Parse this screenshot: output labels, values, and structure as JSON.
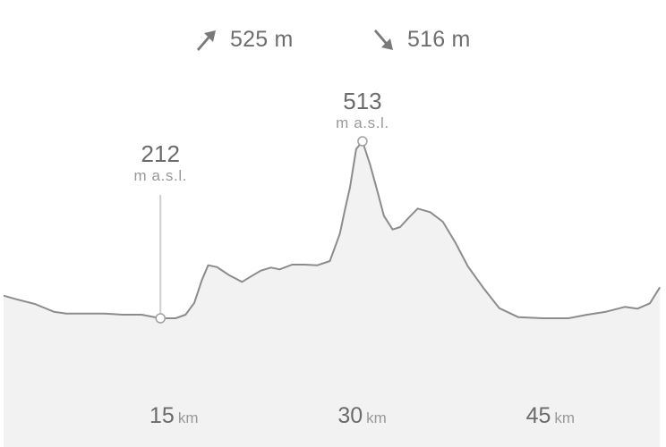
{
  "summary": {
    "ascent": "525 m",
    "descent": "516 m",
    "ascent_icon": "arrow-up-right-icon",
    "descent_icon": "arrow-down-right-icon"
  },
  "markers": {
    "low": {
      "altitude": "212",
      "unit": "m a.s.l."
    },
    "high": {
      "altitude": "513",
      "unit": "m a.s.l."
    }
  },
  "x_ticks": [
    {
      "value": "15",
      "unit": "km"
    },
    {
      "value": "30",
      "unit": "km"
    },
    {
      "value": "45",
      "unit": "km"
    }
  ],
  "colors": {
    "line": "#8c8c8c",
    "fill": "#f2f2f2",
    "grid": "#e2e2e2",
    "text": "#6b6b6b",
    "icon": "#7a7a7a"
  },
  "chart_data": {
    "type": "area",
    "title": "",
    "xlabel": "km",
    "ylabel": "m a.s.l.",
    "xlim": [
      0,
      52.5
    ],
    "ylim": [
      0,
      750
    ],
    "x_ticks": [
      15,
      30,
      45
    ],
    "grid": "vertical lines at ticks",
    "series": [
      {
        "x": [
          0,
          1,
          2.5,
          4,
          5,
          6.5,
          8,
          9.5,
          11,
          12.5,
          13.7,
          14.5,
          15.2,
          15.8,
          16.3,
          17,
          18,
          19,
          19.7,
          20.5,
          21.3,
          22,
          23,
          24,
          25,
          26,
          26.8,
          27.2,
          27.6,
          28.1,
          28.6,
          29.2,
          29.8,
          30.3,
          31,
          31.6,
          32.3,
          33,
          34,
          35,
          36,
          37,
          38.3,
          39.5,
          41,
          43,
          45,
          46.5,
          48,
          49.5,
          50.5,
          51.5,
          52.3
        ],
        "y": [
          254,
          248,
          240,
          227,
          224,
          224,
          224,
          222,
          222,
          216,
          216,
          222,
          242,
          280,
          305,
          302,
          288,
          277,
          286,
          296,
          301,
          298,
          306,
          306,
          305,
          312,
          358,
          398,
          435,
          500,
          513,
          474,
          428,
          388,
          365,
          369,
          385,
          400,
          394,
          378,
          343,
          303,
          265,
          233,
          218,
          216,
          216,
          222,
          227,
          235,
          232,
          241,
          268
        ]
      }
    ]
  }
}
